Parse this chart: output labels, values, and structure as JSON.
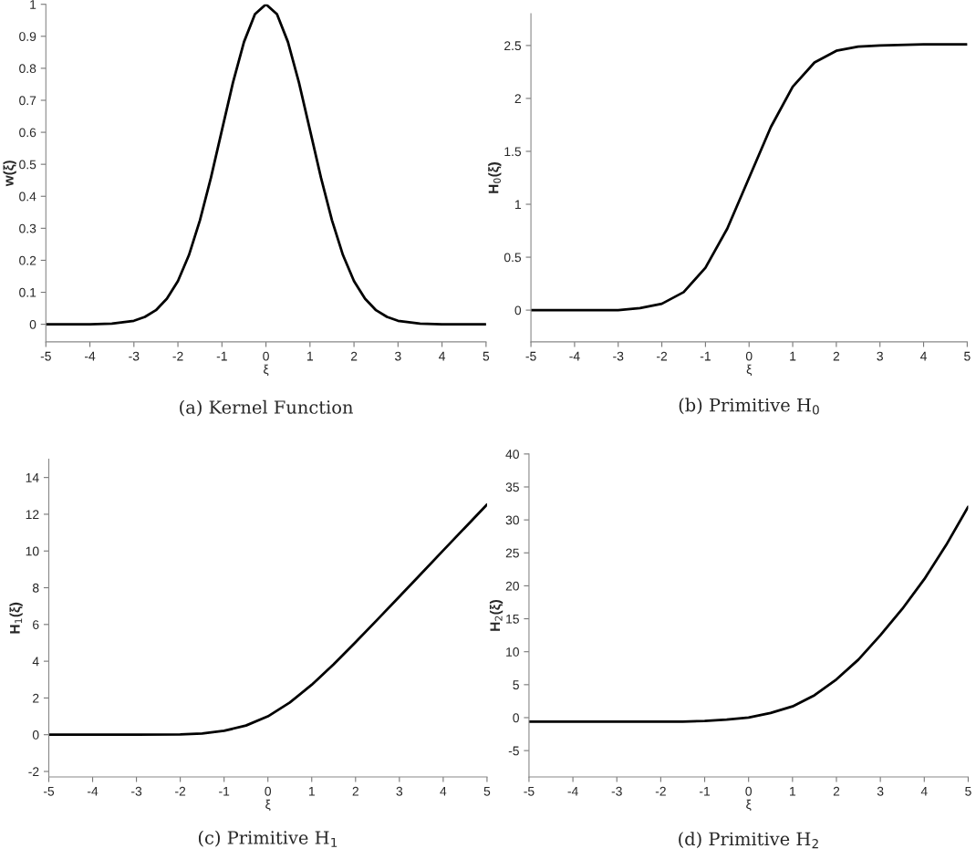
{
  "chart_data": [
    {
      "type": "line",
      "title": "(a) Kernel Function",
      "xlabel": "ξ",
      "ylabel": "w(ξ)",
      "xlim": [
        -5,
        5
      ],
      "ylim": [
        -0.055,
        1
      ],
      "xticks": [
        -5,
        -4,
        -3,
        -2,
        -1,
        0,
        1,
        2,
        3,
        4,
        5
      ],
      "yticks": [
        0,
        0.1,
        0.2,
        0.3,
        0.4,
        0.5,
        0.6,
        0.7,
        0.8,
        0.9,
        1
      ],
      "x": [
        -5,
        -4.5,
        -4,
        -3.5,
        -3,
        -2.75,
        -2.5,
        -2.25,
        -2,
        -1.75,
        -1.5,
        -1.25,
        -1,
        -0.75,
        -0.5,
        -0.25,
        0,
        0.25,
        0.5,
        0.75,
        1,
        1.25,
        1.5,
        1.75,
        2,
        2.25,
        2.5,
        2.75,
        3,
        3.5,
        4,
        4.5,
        5
      ],
      "series": [
        {
          "color": "#000000",
          "values": [
            0,
            0,
            0,
            0.002,
            0.011,
            0.023,
            0.044,
            0.08,
            0.135,
            0.216,
            0.325,
            0.458,
            0.607,
            0.755,
            0.882,
            0.969,
            1,
            0.969,
            0.882,
            0.755,
            0.607,
            0.458,
            0.325,
            0.216,
            0.135,
            0.08,
            0.044,
            0.023,
            0.011,
            0.002,
            0,
            0,
            0
          ]
        }
      ]
    },
    {
      "type": "line",
      "title": "(b) Primitive H$_{0}$",
      "xlabel": "ξ",
      "ylabel": "H$_{0}$(ξ)",
      "xlim": [
        -5,
        5
      ],
      "ylim": [
        -0.3,
        2.8
      ],
      "xticks": [
        -5,
        -4,
        -3,
        -2,
        -1,
        0,
        1,
        2,
        3,
        4,
        5
      ],
      "yticks": [
        0,
        0.5,
        1,
        1.5,
        2,
        2.5
      ],
      "x": [
        -5,
        -4,
        -3,
        -2.5,
        -2,
        -1.5,
        -1,
        -0.5,
        0,
        0.5,
        1,
        1.5,
        2,
        2.5,
        3,
        4,
        5
      ],
      "series": [
        {
          "color": "#000000",
          "values": [
            0,
            0,
            0,
            0.02,
            0.06,
            0.17,
            0.4,
            0.77,
            1.25,
            1.73,
            2.11,
            2.34,
            2.45,
            2.49,
            2.5,
            2.51,
            2.51
          ]
        }
      ]
    },
    {
      "type": "line",
      "title": "(c) Primitive H$_{1}$",
      "xlabel": "ξ",
      "ylabel": "H$_{1}$(ξ)",
      "xlim": [
        -5,
        5
      ],
      "ylim": [
        -2.3,
        15
      ],
      "xticks": [
        -5,
        -4,
        -3,
        -2,
        -1,
        0,
        1,
        2,
        3,
        4,
        5
      ],
      "yticks": [
        -2,
        0,
        2,
        4,
        6,
        8,
        10,
        12,
        14
      ],
      "x": [
        -5,
        -4,
        -3,
        -2,
        -1.5,
        -1,
        -0.5,
        0,
        0.5,
        1,
        1.5,
        2,
        2.5,
        3,
        3.5,
        4,
        4.5,
        5
      ],
      "series": [
        {
          "color": "#000000",
          "values": [
            0,
            0,
            0,
            0.02,
            0.07,
            0.21,
            0.5,
            1,
            1.75,
            2.72,
            3.83,
            5.04,
            6.27,
            7.52,
            8.77,
            10.03,
            11.28,
            12.53
          ]
        }
      ]
    },
    {
      "type": "line",
      "title": "(d) Primitive H$_{2}$",
      "xlabel": "ξ",
      "ylabel": "H$_{2}$(ξ)",
      "xlim": [
        -5,
        5
      ],
      "ylim": [
        -9,
        40
      ],
      "xticks": [
        -5,
        -4,
        -3,
        -2,
        -1,
        0,
        1,
        2,
        3,
        4,
        5
      ],
      "yticks": [
        -5,
        0,
        5,
        10,
        15,
        20,
        25,
        30,
        35,
        40
      ],
      "x": [
        -5,
        -4,
        -3,
        -2,
        -1.5,
        -1,
        -0.5,
        0,
        0.5,
        1,
        1.5,
        2,
        2.5,
        3,
        3.5,
        4,
        4.5,
        5
      ],
      "series": [
        {
          "color": "#000000",
          "values": [
            -0.6,
            -0.6,
            -0.6,
            -0.6,
            -0.6,
            -0.5,
            -0.3,
            0,
            0.7,
            1.7,
            3.4,
            5.8,
            8.8,
            12.5,
            16.5,
            21,
            26.2,
            32
          ]
        }
      ]
    }
  ]
}
